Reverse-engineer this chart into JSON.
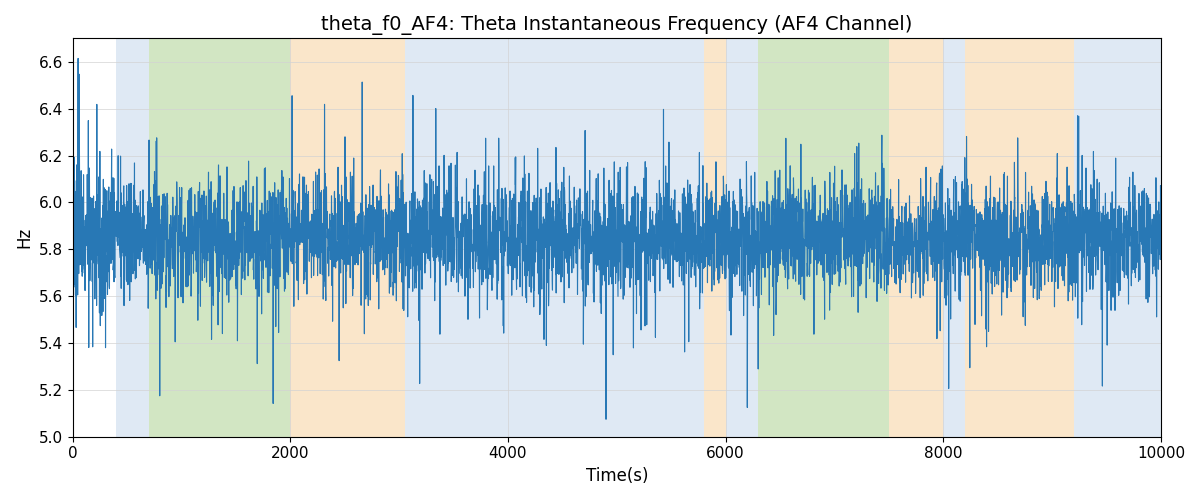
{
  "title": "theta_f0_AF4: Theta Instantaneous Frequency (AF4 Channel)",
  "xlabel": "Time(s)",
  "ylabel": "Hz",
  "xlim": [
    0,
    10000
  ],
  "ylim": [
    5.0,
    6.7
  ],
  "yticks": [
    5.0,
    5.2,
    5.4,
    5.6,
    5.8,
    6.0,
    6.2,
    6.4,
    6.6
  ],
  "line_color": "#2878b5",
  "line_width": 0.8,
  "seed": 42,
  "n_points": 5000,
  "mean_freq": 5.85,
  "background_regions": [
    {
      "xmin": 0,
      "xmax": 400,
      "color": null
    },
    {
      "xmin": 400,
      "xmax": 700,
      "color": "#b8cfe8"
    },
    {
      "xmin": 700,
      "xmax": 2000,
      "color": "#9dc97a"
    },
    {
      "xmin": 2000,
      "xmax": 3050,
      "color": "#f5c88a"
    },
    {
      "xmin": 3050,
      "xmax": 5800,
      "color": "#b8cfe8"
    },
    {
      "xmin": 5800,
      "xmax": 6000,
      "color": "#f5c88a"
    },
    {
      "xmin": 6000,
      "xmax": 6300,
      "color": "#b8cfe8"
    },
    {
      "xmin": 6300,
      "xmax": 6650,
      "color": "#9dc97a"
    },
    {
      "xmin": 6650,
      "xmax": 7500,
      "color": "#9dc97a"
    },
    {
      "xmin": 7500,
      "xmax": 8000,
      "color": "#f5c88a"
    },
    {
      "xmin": 8000,
      "xmax": 8200,
      "color": "#b8cfe8"
    },
    {
      "xmin": 8200,
      "xmax": 9200,
      "color": "#f5c88a"
    },
    {
      "xmin": 9200,
      "xmax": 10000,
      "color": "#b8cfe8"
    }
  ],
  "bg_alpha": 0.45,
  "title_fontsize": 14,
  "axis_fontsize": 12,
  "tick_fontsize": 11,
  "figsize": [
    12.0,
    5.0
  ],
  "dpi": 100
}
